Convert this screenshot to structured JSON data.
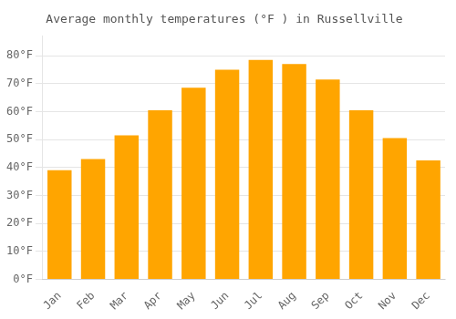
{
  "chart_data": {
    "type": "bar",
    "title": "Average monthly temperatures (°F ) in Russellville",
    "categories": [
      "Jan",
      "Feb",
      "Mar",
      "Apr",
      "May",
      "Jun",
      "Jul",
      "Aug",
      "Sep",
      "Oct",
      "Nov",
      "Dec"
    ],
    "values": [
      39,
      43,
      51.5,
      60.5,
      68.5,
      75,
      78.5,
      77,
      71.5,
      60.5,
      50.5,
      42.5
    ],
    "color": "#FFA500",
    "ylim": [
      0,
      87
    ],
    "yticks": [
      {
        "value": 0,
        "label": "0°F"
      },
      {
        "value": 10,
        "label": "10°F"
      },
      {
        "value": 20,
        "label": "20°F"
      },
      {
        "value": 30,
        "label": "30°F"
      },
      {
        "value": 40,
        "label": "40°F"
      },
      {
        "value": 50,
        "label": "50°F"
      },
      {
        "value": 60,
        "label": "60°F"
      },
      {
        "value": 70,
        "label": "70°F"
      },
      {
        "value": 80,
        "label": "80°F"
      }
    ],
    "grid": true
  }
}
